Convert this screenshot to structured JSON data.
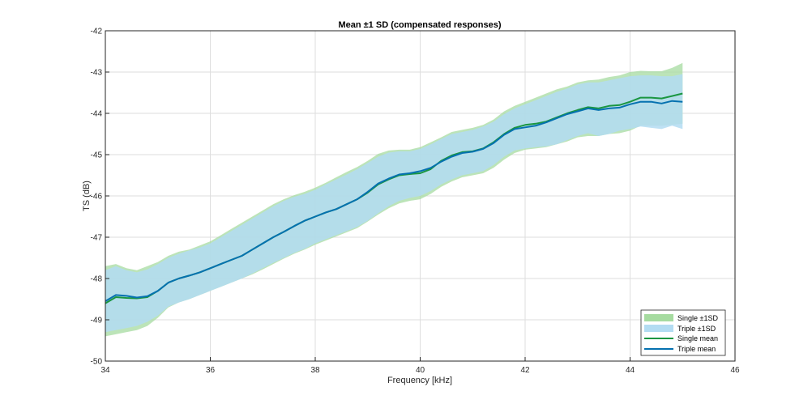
{
  "chart_data": {
    "type": "area",
    "title": "Mean ±1 SD (compensated responses)",
    "xlabel": "Frequency [kHz]",
    "ylabel": "TS (dB)",
    "xlim": [
      34,
      46
    ],
    "ylim": [
      -50,
      -42
    ],
    "grid": true,
    "xticks": [
      34,
      36,
      38,
      40,
      42,
      44,
      46
    ],
    "yticks": [
      -50,
      -49,
      -48,
      -47,
      -46,
      -45,
      -44,
      -43,
      -42
    ],
    "legend_position": "bottom-right",
    "x": [
      34.0,
      34.2,
      34.4,
      34.6,
      34.8,
      35.0,
      35.2,
      35.4,
      35.6,
      35.8,
      36.0,
      36.2,
      36.4,
      36.6,
      36.8,
      37.0,
      37.2,
      37.4,
      37.6,
      37.8,
      38.0,
      38.2,
      38.4,
      38.6,
      38.8,
      39.0,
      39.2,
      39.4,
      39.6,
      39.8,
      40.0,
      40.2,
      40.4,
      40.6,
      40.8,
      41.0,
      41.2,
      41.4,
      41.6,
      41.8,
      42.0,
      42.2,
      42.4,
      42.6,
      42.8,
      43.0,
      43.2,
      43.4,
      43.6,
      43.8,
      44.0,
      44.2,
      44.4,
      44.6,
      44.8,
      45.0
    ],
    "series": [
      {
        "name": "Single mean",
        "color": "#1a9641",
        "band_label": "Single ±1SD",
        "band_color": "#a6dba0",
        "mean": [
          -48.6,
          -48.45,
          -48.47,
          -48.48,
          -48.45,
          -48.3,
          -48.1,
          -48.0,
          -47.93,
          -47.85,
          -47.75,
          -47.65,
          -47.55,
          -47.45,
          -47.3,
          -47.15,
          -47.0,
          -46.87,
          -46.73,
          -46.6,
          -46.5,
          -46.4,
          -46.32,
          -46.2,
          -46.08,
          -45.92,
          -45.72,
          -45.6,
          -45.5,
          -45.47,
          -45.45,
          -45.35,
          -45.15,
          -45.02,
          -44.94,
          -44.92,
          -44.85,
          -44.7,
          -44.5,
          -44.35,
          -44.28,
          -44.25,
          -44.2,
          -44.1,
          -44.0,
          -43.92,
          -43.85,
          -43.88,
          -43.82,
          -43.8,
          -43.72,
          -43.62,
          -43.62,
          -43.64,
          -43.58,
          -43.52
        ],
        "upper": [
          -47.7,
          -47.65,
          -47.75,
          -47.8,
          -47.7,
          -47.6,
          -47.45,
          -47.35,
          -47.3,
          -47.2,
          -47.1,
          -46.95,
          -46.8,
          -46.65,
          -46.5,
          -46.35,
          -46.2,
          -46.08,
          -45.98,
          -45.9,
          -45.8,
          -45.68,
          -45.55,
          -45.42,
          -45.3,
          -45.15,
          -44.98,
          -44.9,
          -44.88,
          -44.88,
          -44.82,
          -44.7,
          -44.58,
          -44.45,
          -44.4,
          -44.35,
          -44.28,
          -44.15,
          -43.95,
          -43.82,
          -43.72,
          -43.62,
          -43.52,
          -43.42,
          -43.35,
          -43.25,
          -43.2,
          -43.18,
          -43.12,
          -43.08,
          -43.0,
          -42.97,
          -42.98,
          -42.98,
          -42.9,
          -42.78
        ],
        "lower": [
          -49.4,
          -49.35,
          -49.3,
          -49.25,
          -49.15,
          -48.95,
          -48.7,
          -48.58,
          -48.5,
          -48.4,
          -48.3,
          -48.2,
          -48.1,
          -48.0,
          -47.9,
          -47.78,
          -47.65,
          -47.52,
          -47.4,
          -47.3,
          -47.18,
          -47.08,
          -46.98,
          -46.88,
          -46.78,
          -46.62,
          -46.45,
          -46.3,
          -46.18,
          -46.12,
          -46.08,
          -45.95,
          -45.78,
          -45.65,
          -45.55,
          -45.5,
          -45.45,
          -45.32,
          -45.12,
          -44.96,
          -44.88,
          -44.85,
          -44.82,
          -44.75,
          -44.68,
          -44.58,
          -44.55,
          -44.55,
          -44.5,
          -44.48,
          -44.42,
          -44.3,
          -44.3,
          -44.3,
          -44.28,
          -44.25
        ]
      },
      {
        "name": "Triple mean",
        "color": "#0571b0",
        "band_label": "Triple ±1SD",
        "band_color": "#b3dcf2",
        "mean": [
          -48.55,
          -48.4,
          -48.42,
          -48.46,
          -48.43,
          -48.3,
          -48.1,
          -48.0,
          -47.93,
          -47.85,
          -47.75,
          -47.65,
          -47.55,
          -47.45,
          -47.3,
          -47.15,
          -47.0,
          -46.87,
          -46.73,
          -46.6,
          -46.5,
          -46.4,
          -46.32,
          -46.2,
          -46.08,
          -45.9,
          -45.7,
          -45.58,
          -45.48,
          -45.45,
          -45.4,
          -45.32,
          -45.17,
          -45.05,
          -44.96,
          -44.93,
          -44.86,
          -44.72,
          -44.52,
          -44.38,
          -44.34,
          -44.3,
          -44.22,
          -44.12,
          -44.02,
          -43.95,
          -43.88,
          -43.92,
          -43.88,
          -43.86,
          -43.78,
          -43.72,
          -43.72,
          -43.76,
          -43.7,
          -43.72
        ],
        "upper": [
          -47.8,
          -47.7,
          -47.8,
          -47.85,
          -47.78,
          -47.65,
          -47.5,
          -47.4,
          -47.32,
          -47.25,
          -47.15,
          -47.0,
          -46.85,
          -46.7,
          -46.55,
          -46.4,
          -46.25,
          -46.12,
          -46.02,
          -45.95,
          -45.85,
          -45.72,
          -45.6,
          -45.48,
          -45.35,
          -45.2,
          -45.05,
          -44.95,
          -44.92,
          -44.92,
          -44.86,
          -44.75,
          -44.62,
          -44.5,
          -44.45,
          -44.4,
          -44.32,
          -44.2,
          -44.02,
          -43.88,
          -43.78,
          -43.68,
          -43.58,
          -43.48,
          -43.4,
          -43.3,
          -43.25,
          -43.25,
          -43.2,
          -43.15,
          -43.1,
          -43.08,
          -43.08,
          -43.1,
          -43.1,
          -43.05
        ],
        "lower": [
          -49.3,
          -49.25,
          -49.2,
          -49.15,
          -49.05,
          -48.9,
          -48.68,
          -48.58,
          -48.5,
          -48.4,
          -48.3,
          -48.2,
          -48.1,
          -48.0,
          -47.88,
          -47.75,
          -47.62,
          -47.5,
          -47.38,
          -47.28,
          -47.15,
          -47.05,
          -46.95,
          -46.85,
          -46.75,
          -46.6,
          -46.42,
          -46.25,
          -46.12,
          -46.05,
          -46.0,
          -45.88,
          -45.72,
          -45.6,
          -45.5,
          -45.45,
          -45.4,
          -45.25,
          -45.05,
          -44.9,
          -44.85,
          -44.82,
          -44.8,
          -44.75,
          -44.65,
          -44.55,
          -44.48,
          -44.55,
          -44.5,
          -44.42,
          -44.38,
          -44.32,
          -44.35,
          -44.38,
          -44.3,
          -44.38
        ]
      }
    ]
  }
}
